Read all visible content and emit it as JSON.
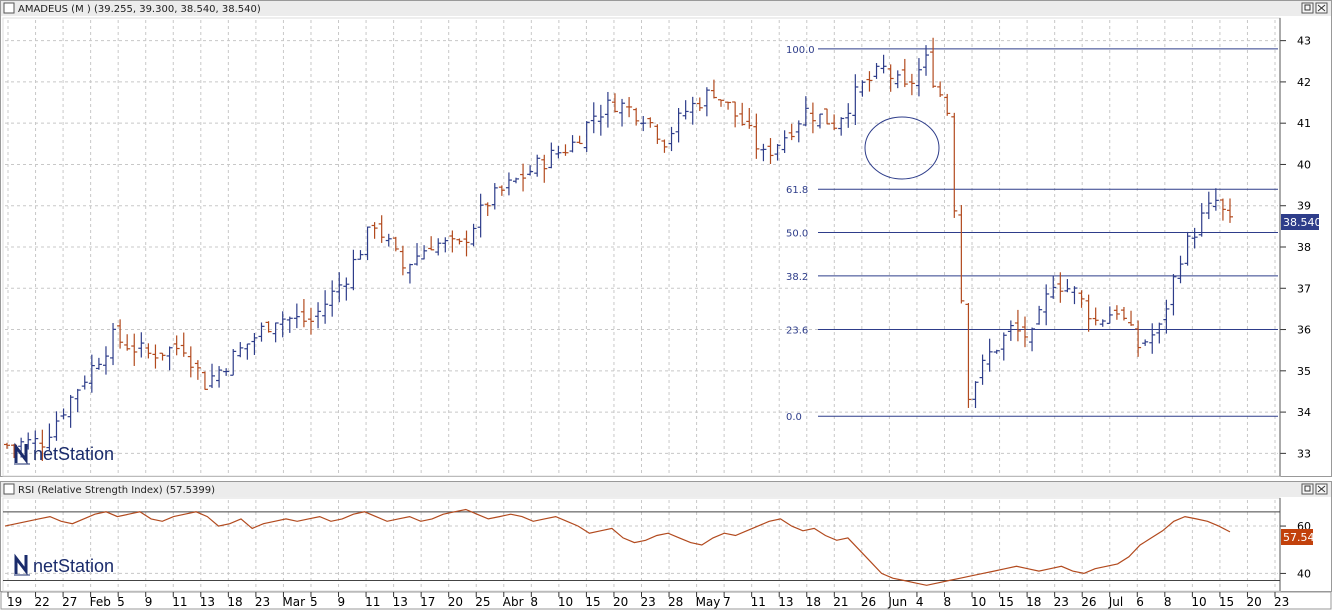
{
  "price_panel": {
    "title": "AMADEUS (M ) (39.255, 39.300, 38.540, 38.540)",
    "last_label": "38.540"
  },
  "rsi_panel": {
    "title": "RSI (Relative Strength Index) (57.5399)",
    "last_label": "57.54"
  },
  "logo": {
    "text_price": "netStation",
    "text_rsi": "netStation"
  },
  "colors": {
    "up": "#2e3d8a",
    "down": "#b24a1e",
    "grid": "#c8c8c8",
    "fib": "#2e3d8a",
    "last_bg_price": "#2e3d8a",
    "last_bg_rsi": "#c2410c"
  },
  "chart_data": [
    {
      "type": "ohlc",
      "title": "AMADEUS (M ) (39.255, 39.300, 38.540, 38.540)",
      "ylim": [
        32.5,
        43.5
      ],
      "y_ticks": [
        33,
        34,
        35,
        36,
        37,
        38,
        39,
        40,
        41,
        42,
        43
      ],
      "grid": true,
      "x_labels": [
        "19",
        "22",
        "27",
        "Feb",
        "5",
        "9",
        "11",
        "13",
        "18",
        "23",
        "Mar",
        "5",
        "9",
        "11",
        "13",
        "17",
        "20",
        "25",
        "Abr",
        "8",
        "10",
        "15",
        "20",
        "23",
        "28",
        "May",
        "7",
        "11",
        "13",
        "18",
        "21",
        "26",
        "Jun",
        "4",
        "8",
        "10",
        "15",
        "18",
        "23",
        "26",
        "Jul",
        "6",
        "8",
        "10",
        "15",
        "20",
        "23"
      ],
      "trend_points": [
        [
          0,
          33.2
        ],
        [
          5,
          33.3
        ],
        [
          10,
          34.6
        ],
        [
          15,
          35.8
        ],
        [
          20,
          35.4
        ],
        [
          25,
          35.6
        ],
        [
          28,
          34.7
        ],
        [
          33,
          35.5
        ],
        [
          38,
          36.3
        ],
        [
          43,
          36.2
        ],
        [
          48,
          37.3
        ],
        [
          52,
          38.6
        ],
        [
          56,
          37.5
        ],
        [
          60,
          38.1
        ],
        [
          64,
          38.0
        ],
        [
          68,
          39.1
        ],
        [
          72,
          39.6
        ],
        [
          76,
          40.1
        ],
        [
          80,
          40.5
        ],
        [
          83,
          41.2
        ],
        [
          86,
          41.5
        ],
        [
          90,
          41.2
        ],
        [
          93,
          40.6
        ],
        [
          96,
          41.3
        ],
        [
          100,
          41.8
        ],
        [
          104,
          41.0
        ],
        [
          107,
          40.2
        ],
        [
          110,
          40.7
        ],
        [
          113,
          41.3
        ],
        [
          117,
          41.0
        ],
        [
          121,
          41.9
        ],
        [
          124,
          42.3
        ],
        [
          127,
          41.8
        ],
        [
          130,
          42.5
        ],
        [
          133,
          41.3
        ],
        [
          136,
          34.5
        ],
        [
          139,
          35.4
        ],
        [
          142,
          36.0
        ],
        [
          145,
          35.8
        ],
        [
          148,
          37.2
        ],
        [
          151,
          36.9
        ],
        [
          154,
          36.2
        ],
        [
          157,
          36.5
        ],
        [
          160,
          35.6
        ],
        [
          163,
          36.0
        ],
        [
          166,
          37.8
        ],
        [
          169,
          38.7
        ],
        [
          171,
          39.1
        ],
        [
          173,
          38.54
        ]
      ],
      "fib_levels": {
        "labels": [
          "100.0",
          "61.8",
          "50.0",
          "38.2",
          "23.6",
          "0.0"
        ],
        "high": 42.8,
        "low": 33.9
      },
      "annotation": "ellipse"
    },
    {
      "type": "line",
      "title": "RSI (Relative Strength Index) (57.5399)",
      "ylim": [
        33,
        71
      ],
      "y_ticks": [
        40,
        60
      ],
      "reference_lines": [
        66,
        37
      ],
      "values": [
        60,
        61,
        62,
        63,
        64,
        62,
        61,
        63,
        65,
        66,
        64,
        65,
        66,
        63,
        62,
        64,
        65,
        66,
        64,
        60,
        61,
        63,
        59,
        61,
        62,
        63,
        62,
        63,
        64,
        62,
        63,
        65,
        66,
        64,
        62,
        63,
        64,
        62,
        63,
        65,
        66,
        67,
        65,
        63,
        64,
        65,
        64,
        62,
        63,
        64,
        62,
        60,
        57,
        58,
        59,
        55,
        53,
        54,
        56,
        57,
        55,
        53,
        52,
        55,
        57,
        56,
        58,
        60,
        62,
        63,
        60,
        58,
        59,
        56,
        54,
        55,
        50,
        45,
        40,
        38,
        37,
        36,
        35,
        36,
        37,
        38,
        39,
        40,
        41,
        42,
        43,
        42,
        41,
        42,
        43,
        41,
        40,
        42,
        43,
        44,
        47,
        52,
        55,
        58,
        62,
        64,
        63,
        62,
        60,
        57.54
      ]
    }
  ]
}
